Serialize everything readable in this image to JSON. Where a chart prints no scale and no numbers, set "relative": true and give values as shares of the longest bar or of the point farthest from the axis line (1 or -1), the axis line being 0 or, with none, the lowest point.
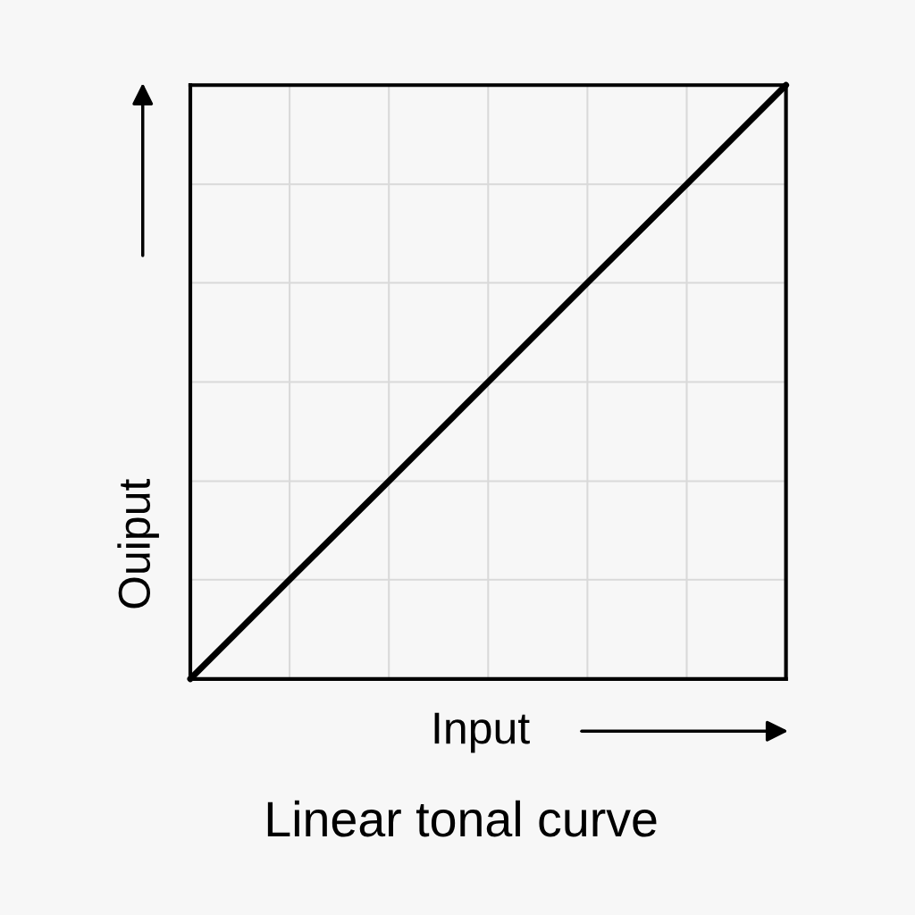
{
  "chart_data": {
    "type": "line",
    "title": "Linear tonal curve",
    "xlabel": "Input",
    "ylabel": "Ouiput",
    "categories": [
      null,
      null,
      null,
      null,
      null,
      null,
      null
    ],
    "series": [
      {
        "color": "#000000",
        "values": [
          0,
          0.167,
          0.333,
          0.5,
          0.667,
          0.833,
          1
        ]
      }
    ],
    "relative": true,
    "grid": true
  }
}
